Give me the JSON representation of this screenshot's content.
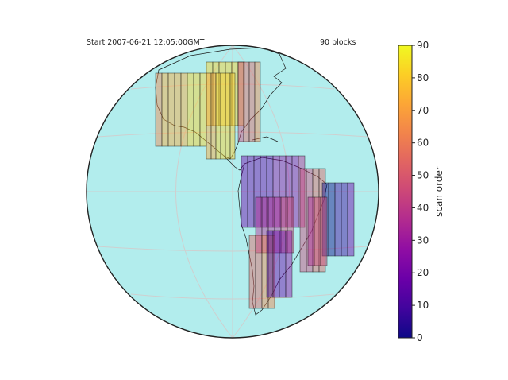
{
  "header": {
    "start_text": "Start 2007-06-21 12:05:00GMT",
    "blocks_text": "90 blocks"
  },
  "colorbar": {
    "label": "scan order",
    "ticks": [
      "0",
      "10",
      "20",
      "30",
      "40",
      "50",
      "60",
      "70",
      "80",
      "90"
    ],
    "min": 0,
    "max": 90,
    "colormap": "plasma"
  },
  "map": {
    "projection": "orthographic",
    "ocean_color": "#b2eded",
    "outside_disk_land_color": "#bfbfbf",
    "graticule": true
  }
}
